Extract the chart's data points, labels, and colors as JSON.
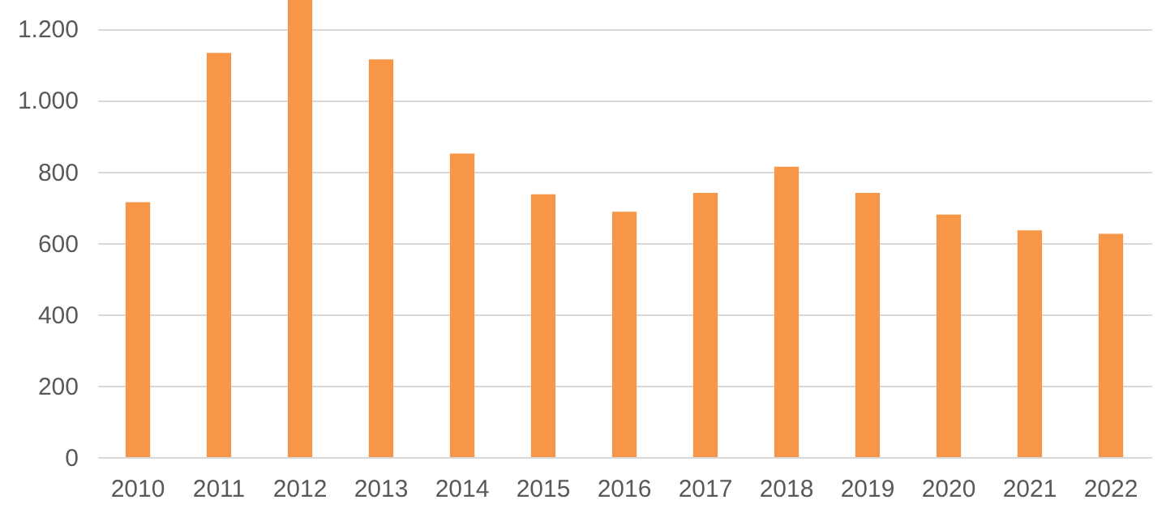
{
  "chart_data": {
    "type": "bar",
    "categories": [
      "2010",
      "2011",
      "2012",
      "2013",
      "2014",
      "2015",
      "2016",
      "2017",
      "2018",
      "2019",
      "2020",
      "2021",
      "2022"
    ],
    "values": [
      714,
      1132,
      1280,
      1114,
      850,
      736,
      687,
      740,
      813,
      740,
      679,
      635,
      625
    ],
    "color": "#f79646",
    "ylim": [
      0,
      1280
    ],
    "yticks": [
      0,
      200,
      400,
      600,
      800,
      {
        "value": 1000,
        "label": "1.000"
      },
      {
        "value": 1200,
        "label": "1.200"
      }
    ],
    "grid": "y"
  }
}
